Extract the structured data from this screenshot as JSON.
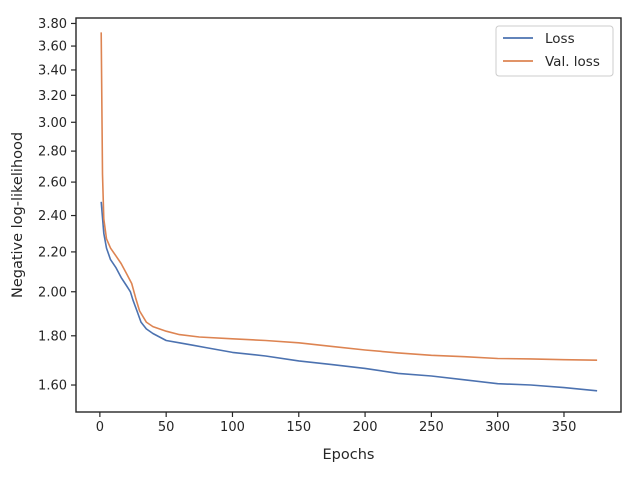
{
  "chart_data": {
    "type": "line",
    "title": "",
    "xlabel": "Epochs",
    "ylabel": "Negative log-likelihood",
    "yscale": "log",
    "xlim": [
      -18,
      393
    ],
    "ylim": [
      1.5,
      3.85
    ],
    "x_ticks": [
      0,
      50,
      100,
      150,
      200,
      250,
      300,
      350
    ],
    "x_tick_labels": [
      "0",
      "50",
      "100",
      "150",
      "200",
      "250",
      "300",
      "350"
    ],
    "y_ticks": [
      1.6,
      1.8,
      2.0,
      2.2,
      2.4,
      2.6,
      2.8,
      3.0,
      3.2,
      3.4,
      3.6,
      3.8
    ],
    "y_tick_labels": [
      "1.60",
      "1.80",
      "2.00",
      "2.20",
      "2.40",
      "2.60",
      "2.80",
      "3.00",
      "3.20",
      "3.40",
      "3.60",
      "3.80"
    ],
    "grid": false,
    "legend_position": "top-right",
    "series": [
      {
        "name": "Loss",
        "color": "#4c72b0",
        "x": [
          1,
          3,
          5,
          8,
          12,
          16,
          20,
          23,
          25,
          28,
          31,
          35,
          40,
          50,
          60,
          70,
          80,
          100,
          125,
          150,
          175,
          200,
          225,
          250,
          275,
          300,
          325,
          350,
          375
        ],
        "y": [
          2.48,
          2.3,
          2.22,
          2.16,
          2.12,
          2.07,
          2.03,
          2.0,
          1.96,
          1.91,
          1.86,
          1.83,
          1.81,
          1.78,
          1.77,
          1.76,
          1.75,
          1.73,
          1.715,
          1.695,
          1.68,
          1.665,
          1.645,
          1.635,
          1.62,
          1.605,
          1.6,
          1.59,
          1.578
        ]
      },
      {
        "name": "Val. loss",
        "color": "#dd8452",
        "x": [
          1,
          2,
          3,
          5,
          8,
          12,
          16,
          20,
          24,
          27,
          30,
          35,
          40,
          50,
          60,
          75,
          100,
          125,
          150,
          175,
          200,
          225,
          250,
          275,
          300,
          325,
          350,
          375
        ],
        "y": [
          3.72,
          2.65,
          2.38,
          2.27,
          2.22,
          2.18,
          2.14,
          2.09,
          2.04,
          1.97,
          1.91,
          1.86,
          1.84,
          1.82,
          1.805,
          1.795,
          1.787,
          1.78,
          1.77,
          1.755,
          1.74,
          1.728,
          1.718,
          1.712,
          1.705,
          1.703,
          1.7,
          1.698
        ]
      }
    ]
  }
}
